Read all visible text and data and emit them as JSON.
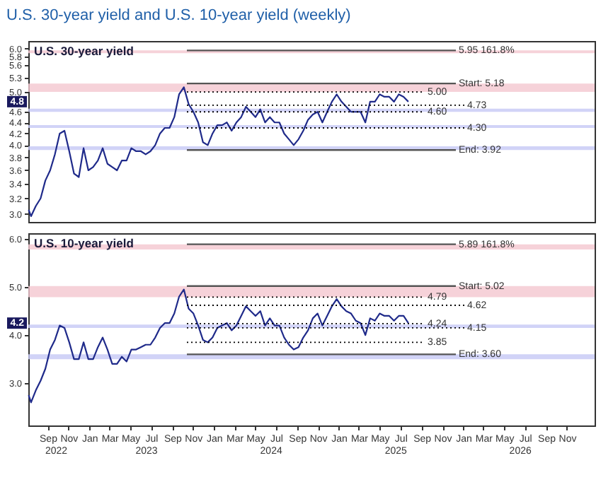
{
  "chart_data": [
    {
      "type": "line",
      "title": "U.S. 30-year yield and U.S. 10-year yield (weekly)",
      "subtitle": "U.S. 30-year yield",
      "log": "y",
      "tick_labels": "y",
      "x": [
        "2022-07-22",
        "2022-07-29",
        "2022-08-12",
        "2022-08-26",
        "2022-09-09",
        "2022-09-23",
        "2022-10-07",
        "2022-10-21",
        "2022-11-04",
        "2022-11-18",
        "2022-12-02",
        "2022-12-16",
        "2022-12-30",
        "2023-01-13",
        "2023-01-27",
        "2023-02-10",
        "2023-02-24",
        "2023-03-10",
        "2023-03-24",
        "2023-04-07",
        "2023-04-21",
        "2023-05-05",
        "2023-05-19",
        "2023-06-02",
        "2023-06-16",
        "2023-06-30",
        "2023-07-14",
        "2023-07-28",
        "2023-08-11",
        "2023-08-25",
        "2023-09-08",
        "2023-09-22",
        "2023-10-06",
        "2023-10-20",
        "2023-11-03",
        "2023-11-17",
        "2023-12-01",
        "2023-12-15",
        "2023-12-29",
        "2024-01-12",
        "2024-01-26",
        "2024-02-09",
        "2024-02-23",
        "2024-03-08",
        "2024-03-22",
        "2024-04-05",
        "2024-04-19",
        "2024-05-03",
        "2024-05-17",
        "2024-05-31",
        "2024-06-14",
        "2024-06-28",
        "2024-07-12",
        "2024-07-26",
        "2024-08-09",
        "2024-08-23",
        "2024-09-06",
        "2024-09-20",
        "2024-10-04",
        "2024-10-18",
        "2024-11-01",
        "2024-11-15",
        "2024-11-29",
        "2024-12-13",
        "2024-12-27",
        "2025-01-10",
        "2025-01-24",
        "2025-02-07",
        "2025-02-21",
        "2025-03-07",
        "2025-03-21",
        "2025-04-04",
        "2025-04-18",
        "2025-05-02",
        "2025-05-16",
        "2025-05-30",
        "2025-06-13",
        "2025-06-27",
        "2025-07-11",
        "2025-07-25",
        "2025-08-08"
      ],
      "series": [
        {
          "color": "#1f2a8a",
          "values": [
            3.05,
            2.97,
            3.1,
            3.2,
            3.45,
            3.6,
            3.85,
            4.2,
            4.25,
            3.9,
            3.55,
            3.5,
            3.95,
            3.6,
            3.65,
            3.75,
            3.95,
            3.7,
            3.65,
            3.6,
            3.75,
            3.75,
            3.95,
            3.9,
            3.9,
            3.85,
            3.9,
            4.0,
            4.2,
            4.3,
            4.3,
            4.5,
            4.95,
            5.1,
            4.75,
            4.6,
            4.4,
            4.05,
            4.0,
            4.2,
            4.35,
            4.35,
            4.4,
            4.25,
            4.4,
            4.5,
            4.7,
            4.6,
            4.5,
            4.65,
            4.4,
            4.5,
            4.4,
            4.4,
            4.2,
            4.1,
            4.0,
            4.1,
            4.25,
            4.45,
            4.55,
            4.6,
            4.4,
            4.6,
            4.8,
            4.95,
            4.8,
            4.7,
            4.6,
            4.6,
            4.6,
            4.4,
            4.8,
            4.8,
            4.95,
            4.9,
            4.9,
            4.8,
            4.95,
            4.9,
            4.8
          ]
        }
      ],
      "xlim": [
        "2022-07-21",
        "2027-02-05"
      ],
      "ylim": [
        2.9,
        6.19
      ],
      "yticks": [
        {
          "value": 3.0,
          "label": "3.0"
        },
        3.2,
        3.4,
        3.6,
        3.8,
        {
          "value": 4.0,
          "label": "4.0"
        },
        4.2,
        4.4,
        4.6,
        {
          "value": 5.0,
          "label": "5.0"
        },
        5.3,
        5.6,
        5.8,
        {
          "value": 6.0,
          "label": "6.0"
        }
      ],
      "bands": [
        {
          "axis": "y",
          "from": 5.88,
          "to": 5.95,
          "color": "#f4c7cf"
        },
        {
          "axis": "y",
          "from": 5.0,
          "to": 5.18,
          "color": "#f4c7cf"
        },
        {
          "axis": "y",
          "from": 4.6,
          "to": 4.66,
          "color": "#c5c8f5"
        },
        {
          "axis": "y",
          "from": 4.3,
          "to": 4.35,
          "color": "#c5c8f5"
        },
        {
          "axis": "y",
          "from": 3.92,
          "to": 3.98,
          "color": "#c5c8f5"
        }
      ],
      "ref_lines": [
        {
          "axis": "y",
          "value": 5.95,
          "label": "5.95 161.8%",
          "color": "#555555",
          "line_style": "solid"
        },
        {
          "axis": "y",
          "value": 5.18,
          "label": "Start: 5.18",
          "color": "#555555",
          "line_style": "solid"
        },
        {
          "axis": "y",
          "value": 5.0,
          "label": "5.00",
          "color": "#000000",
          "line_style": "dotted"
        },
        {
          "axis": "y",
          "value": 4.73,
          "label": "4.73",
          "color": "#000000",
          "line_style": "dotted"
        },
        {
          "axis": "y",
          "value": 4.6,
          "label": "4.60",
          "color": "#000000",
          "line_style": "dotted"
        },
        {
          "axis": "y",
          "value": 4.3,
          "label": "4.30",
          "color": "#000000",
          "line_style": "dotted"
        },
        {
          "axis": "y",
          "value": 3.92,
          "label": "End: 3.92",
          "color": "#555555",
          "line_style": "solid"
        }
      ],
      "annotations": [
        "4.8"
      ]
    },
    {
      "type": "line",
      "subtitle": "U.S. 10-year yield",
      "x": [
        "2022-07-22",
        "2022-07-29",
        "2022-08-12",
        "2022-08-26",
        "2022-09-09",
        "2022-09-23",
        "2022-10-07",
        "2022-10-21",
        "2022-11-04",
        "2022-11-18",
        "2022-12-02",
        "2022-12-16",
        "2022-12-30",
        "2023-01-13",
        "2023-01-27",
        "2023-02-10",
        "2023-02-24",
        "2023-03-10",
        "2023-03-24",
        "2023-04-07",
        "2023-04-21",
        "2023-05-05",
        "2023-05-19",
        "2023-06-02",
        "2023-06-16",
        "2023-06-30",
        "2023-07-14",
        "2023-07-28",
        "2023-08-11",
        "2023-08-25",
        "2023-09-08",
        "2023-09-22",
        "2023-10-06",
        "2023-10-20",
        "2023-11-03",
        "2023-11-17",
        "2023-12-01",
        "2023-12-15",
        "2023-12-29",
        "2024-01-12",
        "2024-01-26",
        "2024-02-09",
        "2024-02-23",
        "2024-03-08",
        "2024-03-22",
        "2024-04-05",
        "2024-04-19",
        "2024-05-03",
        "2024-05-17",
        "2024-05-31",
        "2024-06-14",
        "2024-06-28",
        "2024-07-12",
        "2024-07-26",
        "2024-08-09",
        "2024-08-23",
        "2024-09-06",
        "2024-09-20",
        "2024-10-04",
        "2024-10-18",
        "2024-11-01",
        "2024-11-15",
        "2024-11-29",
        "2024-12-13",
        "2024-12-27",
        "2025-01-10",
        "2025-01-24",
        "2025-02-07",
        "2025-02-21",
        "2025-03-07",
        "2025-03-21",
        "2025-04-04",
        "2025-04-18",
        "2025-05-02",
        "2025-05-16",
        "2025-05-30",
        "2025-06-13",
        "2025-06-27",
        "2025-07-11",
        "2025-07-25",
        "2025-08-08"
      ],
      "series": [
        {
          "color": "#1f2a8a",
          "values": [
            2.75,
            2.6,
            2.85,
            3.05,
            3.3,
            3.7,
            3.9,
            4.2,
            4.15,
            3.85,
            3.5,
            3.5,
            3.85,
            3.5,
            3.5,
            3.75,
            3.95,
            3.7,
            3.4,
            3.4,
            3.55,
            3.45,
            3.7,
            3.7,
            3.75,
            3.8,
            3.8,
            3.95,
            4.15,
            4.25,
            4.25,
            4.45,
            4.8,
            4.95,
            4.55,
            4.45,
            4.2,
            3.9,
            3.85,
            3.95,
            4.15,
            4.2,
            4.25,
            4.1,
            4.2,
            4.4,
            4.6,
            4.5,
            4.4,
            4.5,
            4.2,
            4.35,
            4.2,
            4.2,
            3.95,
            3.8,
            3.7,
            3.75,
            3.95,
            4.1,
            4.35,
            4.45,
            4.2,
            4.4,
            4.6,
            4.75,
            4.6,
            4.5,
            4.45,
            4.3,
            4.25,
            4.0,
            4.35,
            4.3,
            4.45,
            4.4,
            4.4,
            4.3,
            4.4,
            4.4,
            4.25
          ]
        }
      ],
      "xlim": [
        "2022-07-21",
        "2027-02-05"
      ],
      "ylim": [
        2.12,
        6.12
      ],
      "yticks": [
        {
          "value": 3.0,
          "label": "3.0"
        },
        {
          "value": 4.0,
          "label": "4.0"
        },
        {
          "value": 5.0,
          "label": "5.0"
        },
        {
          "value": 6.0,
          "label": "6.0"
        }
      ],
      "xticks": [
        {
          "value": "2022-09-16",
          "label": "Sep"
        },
        {
          "value": "2022-11-16",
          "label": "Nov"
        },
        {
          "value": "2023-01-16",
          "label": "Jan"
        },
        {
          "value": "2023-03-16",
          "label": "Mar"
        },
        {
          "value": "2023-05-16",
          "label": "May"
        },
        {
          "value": "2023-07-16",
          "label": "Jul"
        },
        {
          "value": "2023-09-16",
          "label": "Sep"
        },
        {
          "value": "2023-11-16",
          "label": "Nov"
        },
        {
          "value": "2024-01-16",
          "label": "Jan"
        },
        {
          "value": "2024-03-16",
          "label": "Mar"
        },
        {
          "value": "2024-05-16",
          "label": "May"
        },
        {
          "value": "2024-07-16",
          "label": "Jul"
        },
        {
          "value": "2024-09-16",
          "label": "Sep"
        },
        {
          "value": "2024-11-16",
          "label": "Nov"
        },
        {
          "value": "2025-01-16",
          "label": "Jan"
        },
        {
          "value": "2025-03-16",
          "label": "Mar"
        },
        {
          "value": "2025-05-16",
          "label": "May"
        },
        {
          "value": "2025-07-16",
          "label": "Jul"
        },
        {
          "value": "2025-09-16",
          "label": "Sep"
        },
        {
          "value": "2025-11-16",
          "label": "Nov"
        },
        {
          "value": "2026-01-16",
          "label": "Jan"
        },
        {
          "value": "2026-03-16",
          "label": "Mar"
        },
        {
          "value": "2026-05-16",
          "label": "May"
        },
        {
          "value": "2026-07-16",
          "label": "Jul"
        },
        {
          "value": "2026-09-16",
          "label": "Sep"
        },
        {
          "value": "2026-11-16",
          "label": "Nov"
        }
      ],
      "bands": [
        {
          "axis": "y",
          "from": 5.78,
          "to": 5.89,
          "color": "#f4c7cf"
        },
        {
          "axis": "y",
          "from": 4.79,
          "to": 5.02,
          "color": "#f4c7cf"
        },
        {
          "axis": "y",
          "from": 4.15,
          "to": 4.22,
          "color": "#c5c8f5"
        },
        {
          "axis": "y",
          "from": 3.5,
          "to": 3.6,
          "color": "#c5c8f5"
        }
      ],
      "ref_lines": [
        {
          "axis": "y",
          "value": 5.89,
          "label": "5.89 161.8%",
          "color": "#555555",
          "line_style": "solid"
        },
        {
          "axis": "y",
          "value": 5.02,
          "label": "Start: 5.02",
          "color": "#555555",
          "line_style": "solid"
        },
        {
          "axis": "y",
          "value": 4.79,
          "label": "4.79",
          "color": "#000000",
          "line_style": "dotted"
        },
        {
          "axis": "y",
          "value": 4.62,
          "label": "4.62",
          "color": "#000000",
          "line_style": "dotted"
        },
        {
          "axis": "y",
          "value": 4.24,
          "label": "4.24",
          "color": "#000000",
          "line_style": "dotted"
        },
        {
          "axis": "y",
          "value": 4.15,
          "label": "4.15",
          "color": "#000000",
          "line_style": "dotted"
        },
        {
          "axis": "y",
          "value": 3.85,
          "label": "3.85",
          "color": "#000000",
          "line_style": "dotted"
        },
        {
          "axis": "y",
          "value": 3.6,
          "label": "End: 3.60",
          "color": "#555555",
          "line_style": "solid"
        }
      ],
      "annotations": [
        "4.2",
        "2022",
        "2023",
        "2024",
        "2025",
        "2026"
      ]
    }
  ]
}
